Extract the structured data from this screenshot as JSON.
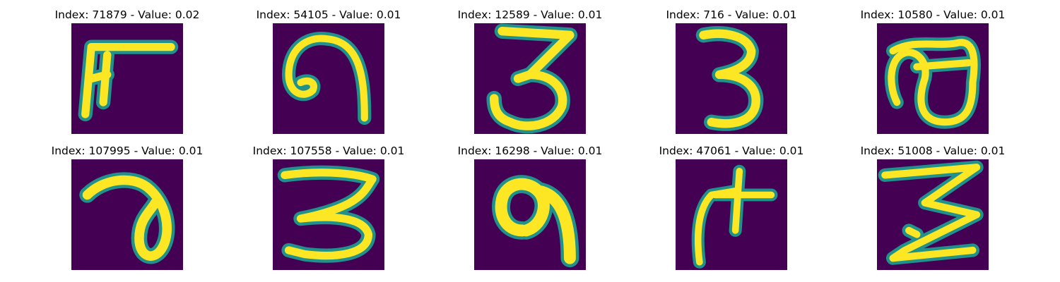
{
  "colors": {
    "background": "#440154",
    "stroke_edge": "#21918c",
    "stroke_mid": "#5ec962",
    "stroke_core": "#fde725"
  },
  "images": [
    {
      "index_label": "Index: 71879",
      "value_label": "Value: 0.02",
      "digit": "F-shaped"
    },
    {
      "index_label": "Index: 54105",
      "value_label": "Value: 0.01",
      "digit": "9-loop"
    },
    {
      "index_label": "Index: 12589",
      "value_label": "Value: 0.01",
      "digit": "3"
    },
    {
      "index_label": "Index: 716",
      "value_label": "Value: 0.01",
      "digit": "3"
    },
    {
      "index_label": "Index: 10580",
      "value_label": "Value: 0.01",
      "digit": "8"
    },
    {
      "index_label": "Index: 107995",
      "value_label": "Value: 0.01",
      "digit": "a-shaped"
    },
    {
      "index_label": "Index: 107558",
      "value_label": "Value: 0.01",
      "digit": "3"
    },
    {
      "index_label": "Index: 16298",
      "value_label": "Value: 0.01",
      "digit": "9"
    },
    {
      "index_label": "Index: 47061",
      "value_label": "Value: 0.01",
      "digit": "cross-shaped"
    },
    {
      "index_label": "Index: 51008",
      "value_label": "Value: 0.01",
      "digit": "3"
    }
  ]
}
